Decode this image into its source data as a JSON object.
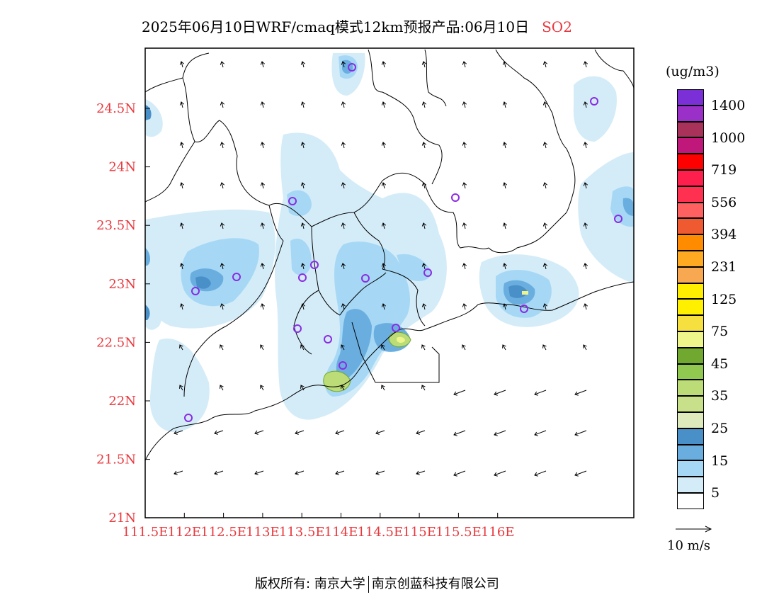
{
  "title": {
    "main": "2025年06月10日WRF/cmaq模式12km预报产品:06月10日",
    "species": "SO2"
  },
  "colors": {
    "axis_label": "#e8383d",
    "species": "#e8383d",
    "station": "#8a2be2"
  },
  "axes": {
    "lat_labels": [
      "24.5N",
      "24N",
      "23.5N",
      "23N",
      "22.5N",
      "22N",
      "21.5N",
      "21N"
    ],
    "lon_labels": [
      "111.5E",
      "112E",
      "112.5E",
      "113E",
      "113.5E",
      "114E",
      "114.5E",
      "115E",
      "115.5E",
      "116E"
    ]
  },
  "legend": {
    "unit": "(ug/m3)",
    "levels": [
      {
        "color": "#7b2fd6",
        "label": "1400"
      },
      {
        "color": "#9b30c8",
        "label": ""
      },
      {
        "color": "#a8325a",
        "label": "1000"
      },
      {
        "color": "#c0187a",
        "label": ""
      },
      {
        "color": "#ff0000",
        "label": "719"
      },
      {
        "color": "#ff1f4d",
        "label": ""
      },
      {
        "color": "#ff3050",
        "label": "556"
      },
      {
        "color": "#ff6060",
        "label": ""
      },
      {
        "color": "#f05a30",
        "label": "394"
      },
      {
        "color": "#ff8c00",
        "label": ""
      },
      {
        "color": "#ffaa20",
        "label": "231"
      },
      {
        "color": "#f8a850",
        "label": ""
      },
      {
        "color": "#ffee00",
        "label": "125"
      },
      {
        "color": "#fff000",
        "label": ""
      },
      {
        "color": "#f5e040",
        "label": "75"
      },
      {
        "color": "#eef58a",
        "label": ""
      },
      {
        "color": "#70a830",
        "label": "45"
      },
      {
        "color": "#90c850",
        "label": ""
      },
      {
        "color": "#bcdc78",
        "label": "35"
      },
      {
        "color": "#c8e08a",
        "label": ""
      },
      {
        "color": "#dfeabc",
        "label": "25"
      },
      {
        "color": "#4a90c8",
        "label": ""
      },
      {
        "color": "#6aaee0",
        "label": "15"
      },
      {
        "color": "#a6d8f5",
        "label": ""
      },
      {
        "color": "#d4ecf8",
        "label": "5"
      },
      {
        "color": "#ffffff",
        "label": ""
      }
    ]
  },
  "wind_reference": {
    "label": "10 m/s"
  },
  "copyright": {
    "left": "版权所有: 南京大学",
    "right": "南京创蓝科技有限公司"
  }
}
